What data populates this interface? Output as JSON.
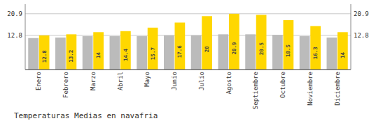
{
  "chart_data": {
    "type": "bar",
    "title": "Temperaturas Medias en navafria",
    "categories": [
      "Enero",
      "Febrero",
      "Marzo",
      "Abril",
      "Mayo",
      "Junio",
      "Julio",
      "Agosto",
      "Septiembre",
      "Octubre",
      "Noviembre",
      "Diciembre"
    ],
    "series": [
      {
        "color": "#BBBBBB",
        "values": [
          11.8,
          12.0,
          12.5,
          12.5,
          12.5,
          12.8,
          12.8,
          13.2,
          13.2,
          13.0,
          12.5,
          12.0
        ]
      },
      {
        "color": "#FFD700",
        "values": [
          12.8,
          13.2,
          14.0,
          14.4,
          15.7,
          17.6,
          20.0,
          20.9,
          20.5,
          18.5,
          16.3,
          14.0
        ],
        "data_labels": true
      }
    ],
    "ylim": [
      0.0,
      24.5
    ],
    "yticks": [
      12.8,
      20.9
    ],
    "grid": true
  }
}
